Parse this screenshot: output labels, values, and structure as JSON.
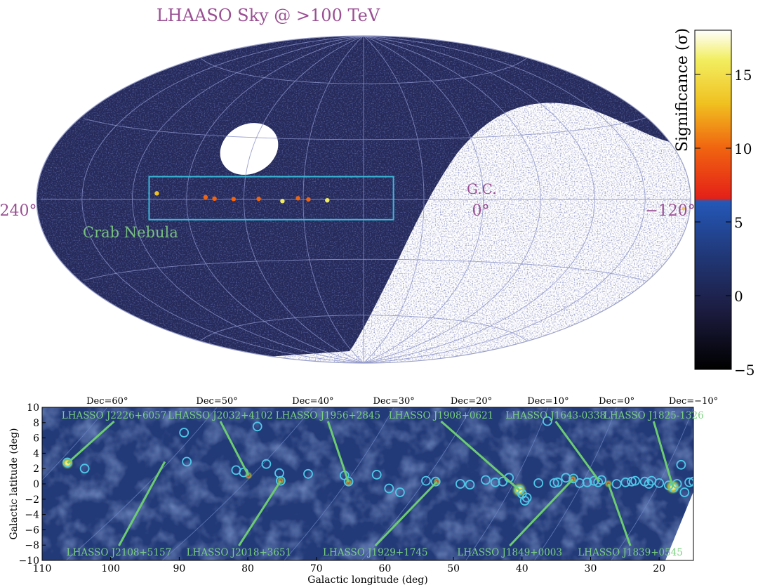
{
  "chart_data": [
    {
      "type": "heatmap",
      "title": "LHAASO Sky @ >100 TeV",
      "projection": "aitoff-galactic",
      "longitude_labels": {
        "left": "240°",
        "center": "0°",
        "right": "−120°"
      },
      "annotations": [
        {
          "text": "G.C.",
          "l": 0,
          "b": 2
        },
        {
          "text": "Crab Nebula",
          "l": 184.6,
          "b": -5.8
        }
      ],
      "colorbar": {
        "label": "Significance (σ)",
        "range": [
          -5,
          18
        ],
        "ticks": [
          {
            "v": 15,
            "t": "15"
          },
          {
            "v": 10,
            "t": "10"
          },
          {
            "v": 5,
            "t": "5"
          },
          {
            "v": 0,
            "t": "0"
          },
          {
            "v": -5,
            "t": "−5"
          }
        ],
        "stops": [
          {
            "v": -5,
            "c": "#000000"
          },
          {
            "v": -1,
            "c": "#1c1c40"
          },
          {
            "v": 3,
            "c": "#213a7c"
          },
          {
            "v": 6.4,
            "c": "#2458b8"
          },
          {
            "v": 6.6,
            "c": "#e42018"
          },
          {
            "v": 10,
            "c": "#f06410"
          },
          {
            "v": 13,
            "c": "#f0c020"
          },
          {
            "v": 16,
            "c": "#f2ee60"
          },
          {
            "v": 18,
            "c": "#ffffff"
          }
        ]
      },
      "hotspots": [
        {
          "l": 106.3,
          "b": 2.7,
          "sig": 13
        },
        {
          "l": 79.9,
          "b": 1.1,
          "sig": 8
        },
        {
          "l": 75.2,
          "b": 0.4,
          "sig": 10
        },
        {
          "l": 65.3,
          "b": 0.2,
          "sig": 7
        },
        {
          "l": 52.4,
          "b": 0.3,
          "sig": 8
        },
        {
          "l": 40.4,
          "b": -0.8,
          "sig": 15
        },
        {
          "l": 32.6,
          "b": 0.6,
          "sig": 10
        },
        {
          "l": 27.4,
          "b": 0.0,
          "sig": 8
        },
        {
          "l": 18.0,
          "b": -0.4,
          "sig": 14
        }
      ],
      "inset_box": {
        "l": [
          -15,
          112
        ],
        "b": [
          -10,
          10
        ]
      }
    },
    {
      "type": "heatmap",
      "xlabel": "Galactic longitude (deg)",
      "ylabel": "Galactic latitude (deg)",
      "xlim": [
        110,
        15
      ],
      "ylim": [
        -10,
        10
      ],
      "xticks": [
        110,
        100,
        90,
        80,
        70,
        60,
        50,
        40,
        30,
        20
      ],
      "yticks": [
        10,
        8,
        6,
        4,
        2,
        0,
        -2,
        -4,
        -6,
        -8,
        -10
      ],
      "ytick_labels": [
        "10",
        "8",
        "6",
        "4",
        "2",
        "0",
        "−2",
        "−4",
        "−6",
        "−8",
        "−10"
      ],
      "dec_labels": [
        {
          "text": "Dec=60°",
          "l": 100.5
        },
        {
          "text": "Dec=50°",
          "l": 84.5
        },
        {
          "text": "Dec=40°",
          "l": 70.5
        },
        {
          "text": "Dec=30°",
          "l": 58.7
        },
        {
          "text": "Dec=20°",
          "l": 47.4
        },
        {
          "text": "Dec=10°",
          "l": 36.2
        },
        {
          "text": "Dec=0°",
          "l": 26.2
        },
        {
          "text": "Dec=−10°",
          "l": 15.0
        }
      ],
      "sources": [
        {
          "name": "LHASSO J2226+6057",
          "l": 106.3,
          "b": 2.7,
          "lab_l": 99.5,
          "lab_b": 8.9,
          "pos": "top"
        },
        {
          "name": "LHASSO J2032+4102",
          "l": 79.9,
          "b": 1.1,
          "lab_l": 84.0,
          "lab_b": 8.9,
          "pos": "top"
        },
        {
          "name": "LHASSO J1956+2845",
          "l": 65.3,
          "b": 0.2,
          "lab_l": 68.3,
          "lab_b": 8.9,
          "pos": "top"
        },
        {
          "name": "LHASSO J1908+0621",
          "l": 40.4,
          "b": -0.8,
          "lab_l": 51.8,
          "lab_b": 8.9,
          "pos": "top"
        },
        {
          "name": "LHASSO J1643-0338",
          "l": 28.7,
          "b": 0.3,
          "lab_l": 35.1,
          "lab_b": 8.9,
          "pos": "top"
        },
        {
          "name": "LHASSO J1825-1326",
          "l": 18.0,
          "b": -0.4,
          "lab_l": 20.8,
          "lab_b": 8.9,
          "pos": "top"
        },
        {
          "name": "LHASSO J2108+5157",
          "l": 92.1,
          "b": 2.9,
          "lab_l": 98.8,
          "lab_b": -9.0,
          "pos": "bottom"
        },
        {
          "name": "LHASSO J2018+3651",
          "l": 75.2,
          "b": 0.4,
          "lab_l": 81.3,
          "lab_b": -9.0,
          "pos": "bottom"
        },
        {
          "name": "LHASSO J1929+1745",
          "l": 52.4,
          "b": 0.3,
          "lab_l": 61.4,
          "lab_b": -9.0,
          "pos": "bottom"
        },
        {
          "name": "LHASSO J1849+0003",
          "l": 32.6,
          "b": 0.6,
          "lab_l": 41.8,
          "lab_b": -9.0,
          "pos": "bottom"
        },
        {
          "name": "LHASSO J1839+0545",
          "l": 27.4,
          "b": 0.0,
          "lab_l": 24.2,
          "lab_b": -9.0,
          "pos": "bottom"
        }
      ],
      "circles": [
        [
          106.3,
          2.8
        ],
        [
          103.8,
          2.0
        ],
        [
          89.3,
          6.7
        ],
        [
          88.9,
          2.9
        ],
        [
          78.6,
          7.5
        ],
        [
          77.3,
          2.6
        ],
        [
          81.7,
          1.8
        ],
        [
          80.6,
          1.5
        ],
        [
          75.4,
          1.4
        ],
        [
          75.2,
          0.4
        ],
        [
          71.2,
          1.3
        ],
        [
          65.9,
          1.1
        ],
        [
          65.3,
          0.3
        ],
        [
          61.2,
          1.2
        ],
        [
          59.4,
          -0.6
        ],
        [
          57.8,
          -1.1
        ],
        [
          54.0,
          0.4
        ],
        [
          52.6,
          0.3
        ],
        [
          49.0,
          0.0
        ],
        [
          47.6,
          -0.1
        ],
        [
          45.3,
          0.5
        ],
        [
          43.9,
          0.2
        ],
        [
          42.8,
          0.3
        ],
        [
          41.9,
          0.8
        ],
        [
          40.4,
          -0.8
        ],
        [
          40.0,
          -1.3
        ],
        [
          39.6,
          -2.2
        ],
        [
          39.3,
          -1.8
        ],
        [
          37.6,
          0.1
        ],
        [
          36.3,
          8.2
        ],
        [
          35.3,
          0.1
        ],
        [
          34.8,
          0.2
        ],
        [
          33.6,
          0.8
        ],
        [
          32.5,
          0.7
        ],
        [
          31.6,
          0.1
        ],
        [
          30.5,
          0.2
        ],
        [
          29.5,
          0.4
        ],
        [
          28.9,
          0.2
        ],
        [
          28.4,
          0.5
        ],
        [
          26.2,
          0.0
        ],
        [
          24.9,
          0.2
        ],
        [
          24.0,
          0.3
        ],
        [
          23.5,
          0.4
        ],
        [
          22.1,
          0.3
        ],
        [
          21.5,
          0.0
        ],
        [
          21.1,
          0.4
        ],
        [
          20.0,
          0.1
        ],
        [
          18.6,
          -0.2
        ],
        [
          17.9,
          -0.5
        ],
        [
          17.4,
          0.0
        ],
        [
          16.8,
          2.5
        ],
        [
          16.3,
          -1.1
        ],
        [
          15.6,
          0.2
        ],
        [
          15.0,
          0.3
        ]
      ]
    }
  ]
}
